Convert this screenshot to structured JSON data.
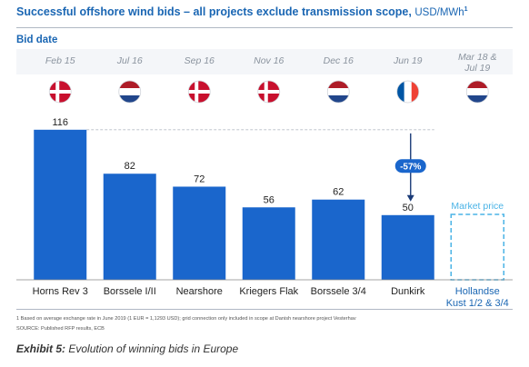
{
  "header": {
    "title": "Successful offshore wind bids – all projects exclude transmission scope,",
    "unit": "USD/MWh",
    "unit_footnote": "1",
    "bid_date_label": "Bid date"
  },
  "chart_data": {
    "type": "bar",
    "categories": [
      "Horns Rev 3",
      "Borssele I/II",
      "Nearshore",
      "Kriegers Flak",
      "Borssele 3/4",
      "Dunkirk"
    ],
    "values": [
      116,
      82,
      72,
      56,
      62,
      50
    ],
    "bid_dates": [
      "Feb 15",
      "Jul 16",
      "Sep 16",
      "Nov 16",
      "Dec 16",
      "Jun 19"
    ],
    "flags": [
      "denmark-flag",
      "netherlands-flag",
      "denmark-flag",
      "denmark-flag",
      "netherlands-flag",
      "france-flag"
    ],
    "ylim": [
      0,
      125
    ],
    "grid": false,
    "annotation": {
      "label": "-57%",
      "from_category": "Horns Rev 3",
      "to_category": "Dunkirk"
    },
    "market_price": {
      "category": "Hollandse Kust 1/2 & 3/4",
      "bid_date": "Mar 18 & Jul 19",
      "flag": "netherlands-flag",
      "label": "Market price"
    },
    "colors": {
      "bar": "#1a66cc",
      "accent": "#1a66b3",
      "dashed": "#4ab3e6",
      "annotation_bg": "#1a66cc"
    }
  },
  "footer": {
    "footnote": "1 Based on average exchange rate in June 2019 (1 EUR = 1,1293 USD); grid connection only included in scope at Danish nearshore project Vesterhav",
    "source": "SOURCE: Published RFP results, ECB",
    "exhibit_label": "Exhibit 5:",
    "exhibit_text": "Evolution of winning bids in Europe"
  }
}
